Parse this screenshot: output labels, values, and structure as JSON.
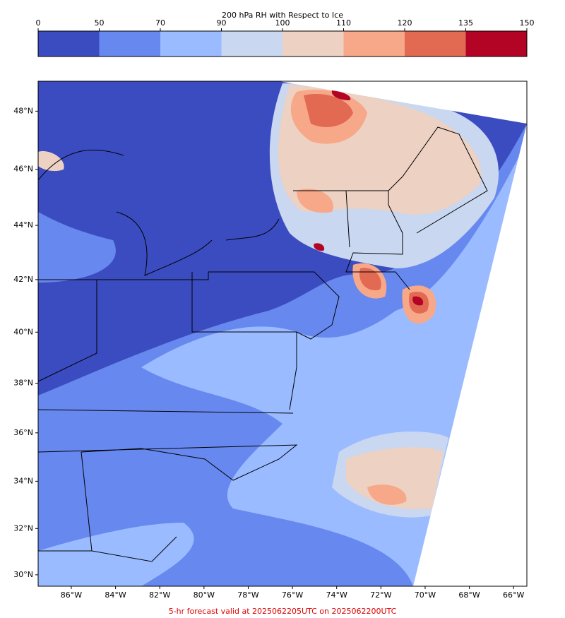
{
  "colorbar": {
    "title": "200 hPa RH with Respect to Ice",
    "ticks": [
      0,
      50,
      70,
      90,
      100,
      110,
      120,
      135,
      150
    ],
    "colors": [
      "#3b4cc0",
      "#6788ee",
      "#9abbff",
      "#c9d7f0",
      "#edd1c2",
      "#f7a889",
      "#e26952",
      "#b40426"
    ]
  },
  "map": {
    "lonlim": [
      -87.5,
      -65.4
    ],
    "latlim": [
      29.5,
      49.0
    ],
    "xticks": [
      {
        "value": -86,
        "label": "86°W"
      },
      {
        "value": -84,
        "label": "84°W"
      },
      {
        "value": -82,
        "label": "82°W"
      },
      {
        "value": -80,
        "label": "80°W"
      },
      {
        "value": -78,
        "label": "78°W"
      },
      {
        "value": -76,
        "label": "76°W"
      },
      {
        "value": -74,
        "label": "74°W"
      },
      {
        "value": -72,
        "label": "72°W"
      },
      {
        "value": -70,
        "label": "70°W"
      },
      {
        "value": -68,
        "label": "68°W"
      },
      {
        "value": -66,
        "label": "66°W"
      }
    ],
    "yticks": [
      {
        "value": 30,
        "label": "30°N"
      },
      {
        "value": 32,
        "label": "32°N"
      },
      {
        "value": 34,
        "label": "34°N"
      },
      {
        "value": 36,
        "label": "36°N"
      },
      {
        "value": 38,
        "label": "38°N"
      },
      {
        "value": 40,
        "label": "40°N"
      },
      {
        "value": 42,
        "label": "42°N"
      },
      {
        "value": 44,
        "label": "44°N"
      },
      {
        "value": 46,
        "label": "46°N"
      },
      {
        "value": 48,
        "label": "48°N"
      }
    ]
  },
  "footer": "5-hr forecast valid at 2025062205UTC on 2025062200UTC"
}
